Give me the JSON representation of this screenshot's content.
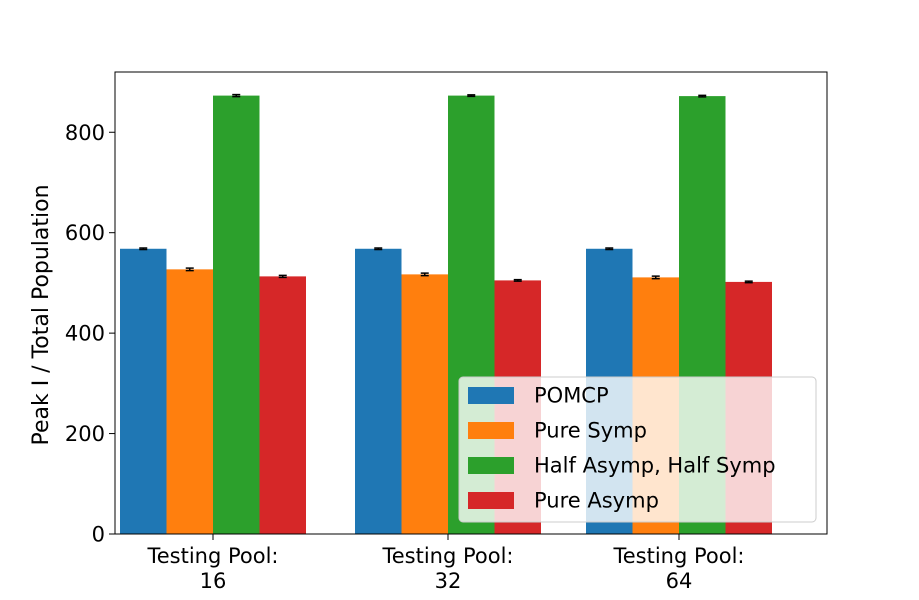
{
  "chart_data": {
    "type": "bar",
    "title": "",
    "xlabel": "",
    "ylabel": "Peak I / Total Population",
    "ylim": [
      0,
      920
    ],
    "yticks": [
      0,
      200,
      400,
      600,
      800
    ],
    "grid": false,
    "legend_position": "lower-right",
    "categories": [
      [
        "Testing Pool:",
        "16"
      ],
      [
        "Testing Pool:",
        "32"
      ],
      [
        "Testing Pool:",
        "64"
      ]
    ],
    "series": [
      {
        "name": "POMCP",
        "color": "#1f77b4",
        "values": [
          568,
          568,
          568
        ],
        "errors": [
          1.5,
          1.5,
          1.5
        ]
      },
      {
        "name": "Pure Symp",
        "color": "#ff7f0e",
        "values": [
          527,
          517,
          511
        ],
        "errors": [
          2.5,
          2.5,
          2.5
        ]
      },
      {
        "name": "Half Asymp, Half Symp",
        "color": "#2ca02c",
        "values": [
          873,
          873,
          872
        ],
        "errors": [
          2,
          1.5,
          1.5
        ]
      },
      {
        "name": "Pure Asymp",
        "color": "#d62728",
        "values": [
          513,
          505,
          502
        ],
        "errors": [
          2,
          1.5,
          1.5
        ]
      }
    ]
  }
}
